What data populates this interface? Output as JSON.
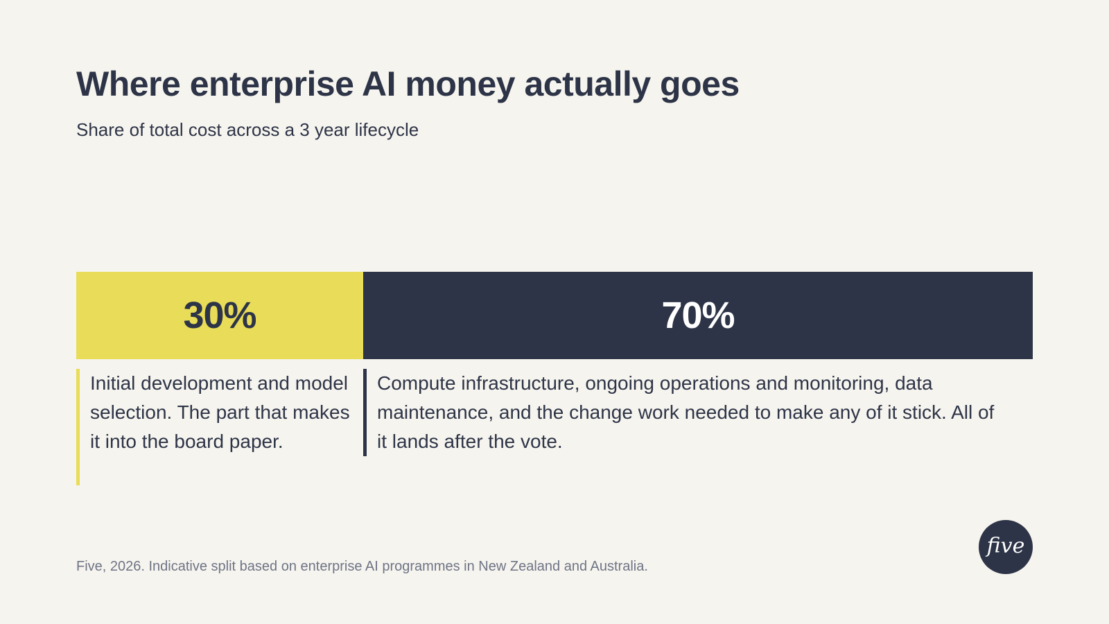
{
  "chart_data": {
    "type": "bar",
    "title": "Where enterprise AI money actually goes",
    "subtitle": "Share of total cost across a 3 year lifecycle",
    "xlabel": "",
    "ylabel": "",
    "unit": "%",
    "series": [
      {
        "value": 30,
        "label": "30%",
        "color": "#E8DC58",
        "text_color": "#2D3447",
        "description": "Initial development and model selection. The part that makes it into the board paper."
      },
      {
        "value": 70,
        "label": "70%",
        "color": "#2D3447",
        "text_color": "#FFFFFF",
        "description": "Compute infrastructure, ongoing operations and monitoring, data maintenance, and the change work needed to make any of it stick. All of it lands after the vote."
      }
    ]
  },
  "source": "Five, 2026. Indicative split based on enterprise AI programmes in New Zealand and Australia.",
  "logo": {
    "text": "five"
  },
  "colors": {
    "background": "#F6F4EE",
    "text": "#2D3447",
    "muted": "#6E7486",
    "accent": "#E8DC58",
    "dark": "#2D3447"
  }
}
